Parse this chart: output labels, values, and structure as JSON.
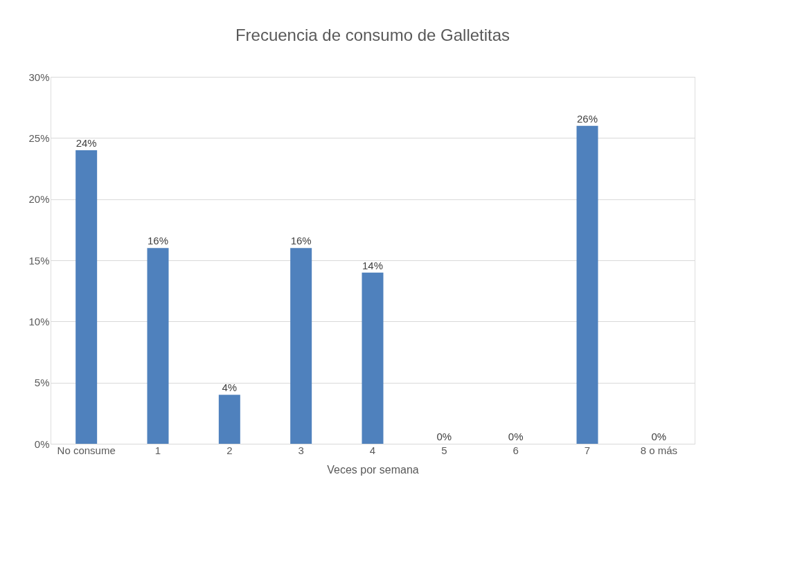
{
  "chart_data": {
    "type": "bar",
    "title": "Frecuencia de consumo de Galletitas",
    "xlabel": "Veces por semana",
    "categories": [
      "No consume",
      "1",
      "2",
      "3",
      "4",
      "5",
      "6",
      "7",
      "8 o más"
    ],
    "values": [
      24,
      16,
      4,
      16,
      14,
      0,
      0,
      26,
      0
    ],
    "value_labels": [
      "24%",
      "16%",
      "4%",
      "16%",
      "14%",
      "0%",
      "0%",
      "26%",
      "0%"
    ],
    "color": "#4f81bd",
    "ylim": [
      0,
      30
    ],
    "yticks": [
      {
        "value": 0,
        "label": "0%"
      },
      {
        "value": 5,
        "label": "5%"
      },
      {
        "value": 10,
        "label": "10%"
      },
      {
        "value": 15,
        "label": "15%"
      },
      {
        "value": 20,
        "label": "20%"
      },
      {
        "value": 25,
        "label": "25%"
      },
      {
        "value": 30,
        "label": "30%"
      }
    ],
    "grid": "y"
  }
}
